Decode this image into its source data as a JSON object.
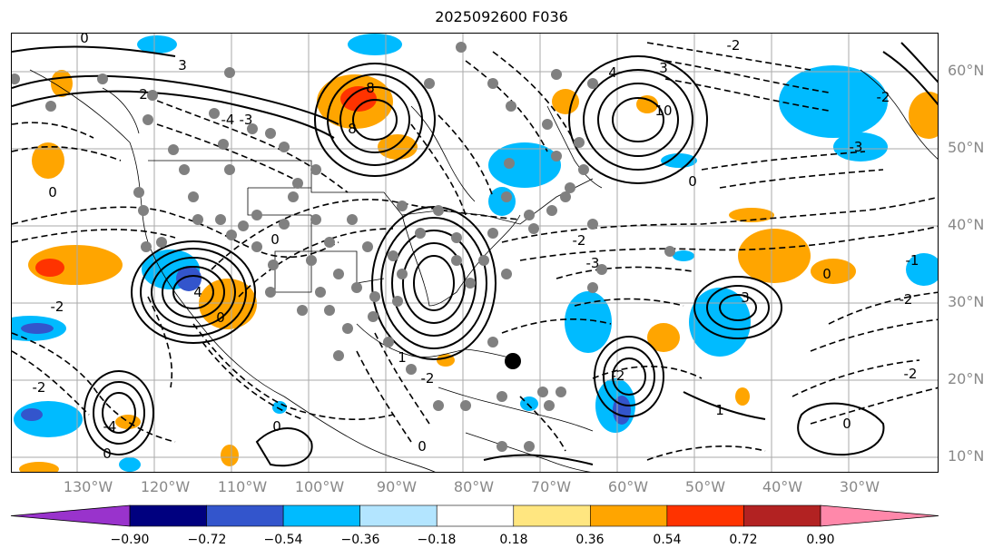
{
  "title": "2025092600 F036",
  "lat_labels": [
    "60°N",
    "50°N",
    "40°N",
    "30°N",
    "20°N",
    "10°N"
  ],
  "lon_labels": [
    "130°W",
    "120°W",
    "110°W",
    "100°W",
    "90°W",
    "80°W",
    "70°W",
    "60°W",
    "50°W",
    "40°W",
    "30°W"
  ],
  "colorbar": {
    "ticks": [
      "−0.90",
      "−0.72",
      "−0.54",
      "−0.36",
      "−0.18",
      "0.18",
      "0.36",
      "0.54",
      "0.72",
      "0.90"
    ],
    "colors": [
      "#9933cc",
      "#00007f",
      "#3355cc",
      "#00bbff",
      "#b3e5ff",
      "#ffffff",
      "#ffe680",
      "#ffa500",
      "#ff3300",
      "#b22222",
      "#ff88aa"
    ]
  },
  "contour_labels": [
    "0",
    "1",
    "2",
    "3",
    "4",
    "8",
    "10",
    "-1",
    "-2",
    "-3",
    "-4"
  ],
  "legend": {
    "positive_style": "solid",
    "negative_style": "dashed"
  }
}
